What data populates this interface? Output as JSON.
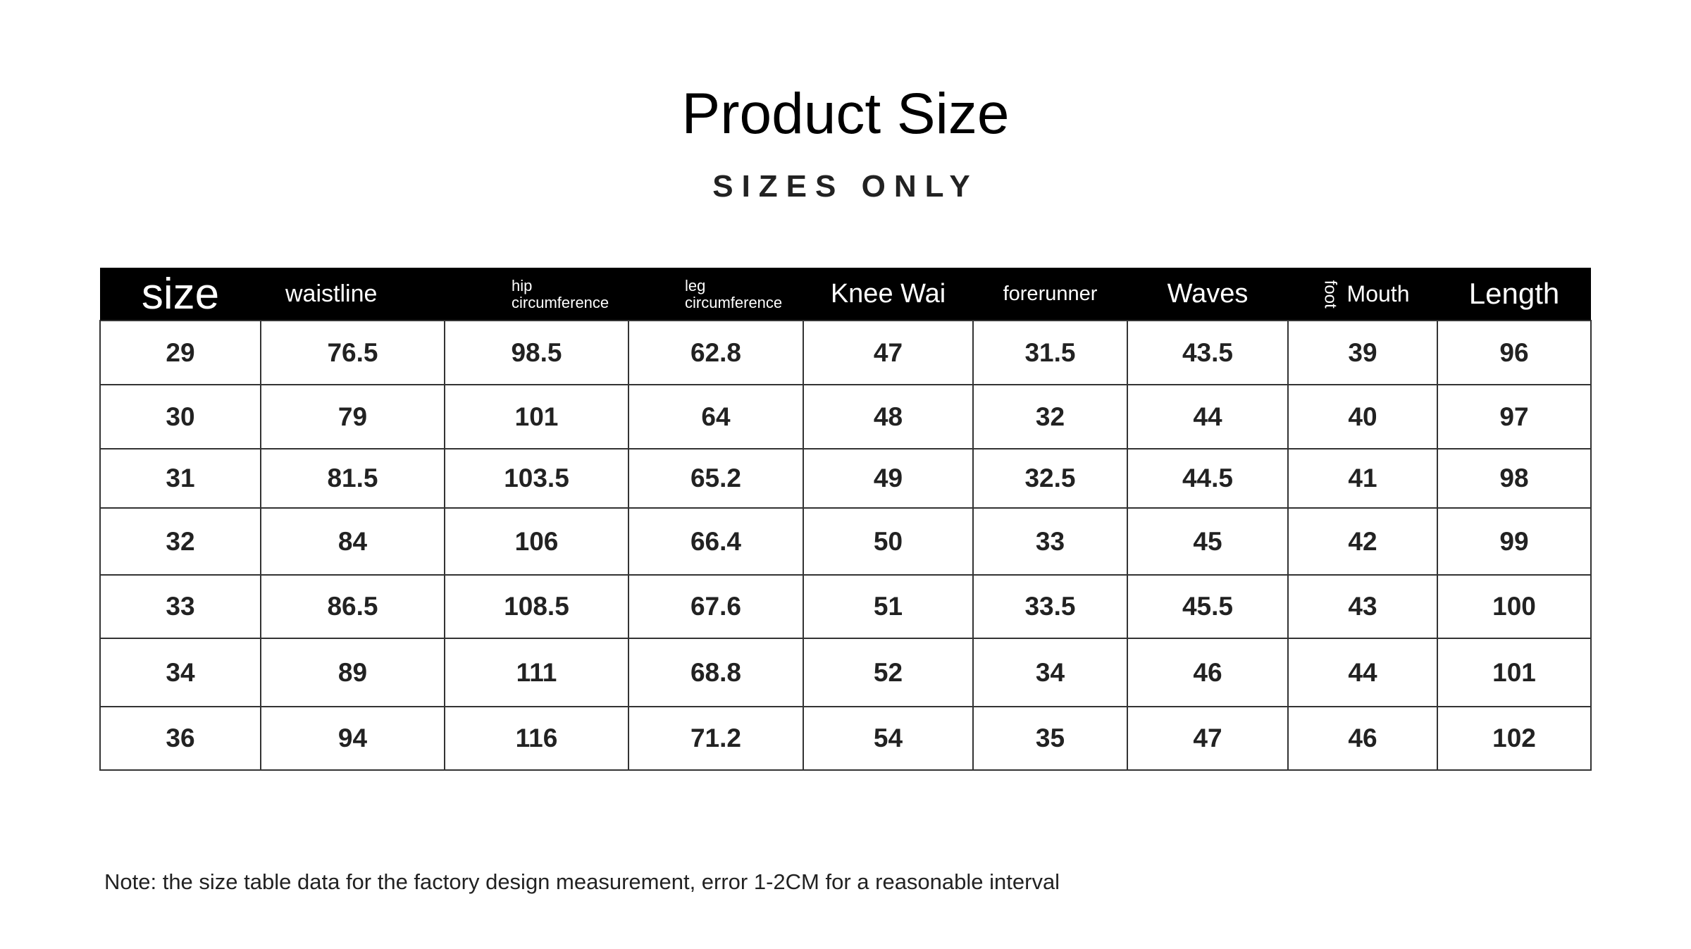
{
  "header": {
    "title": "Product Size",
    "subtitle": "SIZES ONLY"
  },
  "table": {
    "headers": [
      "size",
      "waistline",
      "hip circumference",
      "leg circumference",
      "Knee Wai",
      "forerunner",
      "Waves",
      [
        "foot",
        "Mouth"
      ],
      "Length"
    ],
    "rows": [
      [
        "29",
        "76.5",
        "98.5",
        "62.8",
        "47",
        "31.5",
        "43.5",
        "39",
        "96"
      ],
      [
        "30",
        "79",
        "101",
        "64",
        "48",
        "32",
        "44",
        "40",
        "97"
      ],
      [
        "31",
        "81.5",
        "103.5",
        "65.2",
        "49",
        "32.5",
        "44.5",
        "41",
        "98"
      ],
      [
        "32",
        "84",
        "106",
        "66.4",
        "50",
        "33",
        "45",
        "42",
        "99"
      ],
      [
        "33",
        "86.5",
        "108.5",
        "67.6",
        "51",
        "33.5",
        "45.5",
        "43",
        "100"
      ],
      [
        "34",
        "89",
        "111",
        "68.8",
        "52",
        "34",
        "46",
        "44",
        "101"
      ],
      [
        "36",
        "94",
        "116",
        "71.2",
        "54",
        "35",
        "47",
        "46",
        "102"
      ]
    ]
  },
  "note": "Note: the size table data for the factory design measurement, error 1-2CM for a reasonable interval"
}
